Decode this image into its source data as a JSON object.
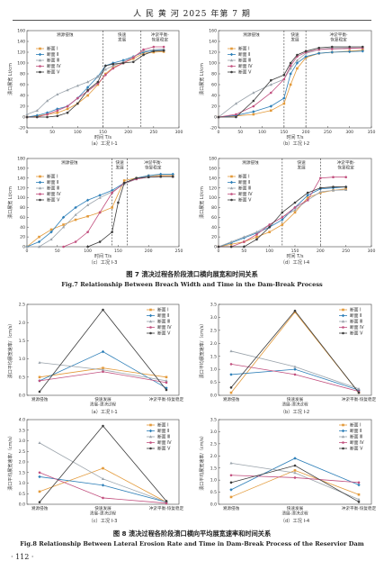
{
  "header": {
    "text": "人 民 黄 河    2025 年第 7 期"
  },
  "colors": {
    "s1": "#e39a3a",
    "s2": "#2d7fb8",
    "s3": "#9aa3ab",
    "s4": "#c2507f",
    "s5": "#3c3c3c"
  },
  "page_number": "· 112 ·",
  "fig7": {
    "caption_zh": "图 7    溃决过程各阶段溃口横向展宽和时间关系",
    "caption_en": "Fig.7    Relationship Between Breach Width and Time in the Dam-Break Process"
  },
  "fig8": {
    "caption_zh": "图 8    溃决过程各阶段溃口横向平均展宽速率和时间关系",
    "caption_en": "Fig.8    Relationship Between Lateral Erosion Rate and Time in Dam-Break Process of the Reservior Dam"
  },
  "chart_data": [
    {
      "type": "line",
      "subtitle": "（a）工况 Ⅰ-1",
      "xlabel": "时间 T/s",
      "ylabel": "溃口展宽 Lt/cm",
      "xlim": [
        0,
        300
      ],
      "ylim": [
        -20,
        160
      ],
      "xticks": [
        0,
        50,
        100,
        150,
        200,
        250,
        300
      ],
      "yticks": [
        -20,
        0,
        20,
        40,
        60,
        80,
        100,
        120,
        140,
        160
      ],
      "phase_lines": [
        150,
        225
      ],
      "phase_labels": [
        "溯源侵蚀",
        "快速\n发展",
        "冲淤平衡-\n恢复稳定"
      ],
      "series": [
        {
          "name": "断面 Ⅰ",
          "x": [
            0,
            20,
            40,
            60,
            80,
            100,
            120,
            140,
            155,
            170,
            190,
            210,
            230,
            250,
            270
          ],
          "y": [
            0,
            2,
            5,
            8,
            15,
            25,
            40,
            60,
            80,
            92,
            100,
            108,
            118,
            120,
            121
          ]
        },
        {
          "name": "断面 Ⅱ",
          "x": [
            0,
            20,
            40,
            60,
            80,
            100,
            120,
            140,
            155,
            170,
            190,
            210,
            230,
            250,
            270
          ],
          "y": [
            0,
            3,
            8,
            15,
            20,
            35,
            55,
            75,
            95,
            100,
            105,
            112,
            120,
            123,
            124
          ]
        },
        {
          "name": "断面 Ⅲ",
          "x": [
            0,
            20,
            40,
            60,
            80,
            100,
            120,
            140,
            155,
            170,
            190,
            210,
            230,
            250,
            270
          ],
          "y": [
            5,
            12,
            30,
            42,
            50,
            58,
            65,
            75,
            88,
            95,
            102,
            112,
            122,
            125,
            126
          ]
        },
        {
          "name": "断面 Ⅳ",
          "x": [
            0,
            20,
            40,
            60,
            80,
            100,
            120,
            140,
            155,
            170,
            190,
            210,
            230,
            250,
            270
          ],
          "y": [
            0,
            0,
            5,
            12,
            20,
            35,
            48,
            62,
            78,
            90,
            100,
            110,
            125,
            130,
            130
          ]
        },
        {
          "name": "断面 Ⅴ",
          "x": [
            0,
            20,
            40,
            60,
            80,
            100,
            120,
            140,
            155,
            170,
            190,
            210,
            230,
            250,
            270
          ],
          "y": [
            0,
            0,
            0,
            2,
            8,
            25,
            50,
            65,
            95,
            98,
            100,
            102,
            115,
            122,
            123
          ]
        }
      ]
    },
    {
      "type": "line",
      "subtitle": "（b）工况 Ⅰ-2",
      "xlabel": "时间 T/s",
      "ylabel": "溃口展宽 Lt/cm",
      "xlim": [
        0,
        350
      ],
      "ylim": [
        -20,
        160
      ],
      "xticks": [
        0,
        50,
        100,
        150,
        200,
        250,
        300,
        350
      ],
      "yticks": [
        -20,
        0,
        20,
        40,
        60,
        80,
        100,
        120,
        140,
        160
      ],
      "phase_lines": [
        150,
        200
      ],
      "phase_labels": [
        "溯源侵蚀",
        "快速\n发展",
        "冲淤平衡-\n恢复稳定"
      ],
      "series": [
        {
          "name": "断面 Ⅰ",
          "x": [
            0,
            40,
            80,
            120,
            150,
            165,
            180,
            200,
            230,
            260,
            300,
            330
          ],
          "y": [
            0,
            2,
            5,
            12,
            25,
            60,
            90,
            110,
            118,
            120,
            122,
            124
          ]
        },
        {
          "name": "断面 Ⅱ",
          "x": [
            0,
            40,
            80,
            120,
            150,
            165,
            180,
            200,
            230,
            260,
            300,
            330
          ],
          "y": [
            0,
            3,
            10,
            20,
            35,
            80,
            100,
            112,
            118,
            120,
            121,
            122
          ]
        },
        {
          "name": "断面 Ⅲ",
          "x": [
            0,
            40,
            80,
            120,
            150,
            165,
            180,
            200,
            230,
            260,
            300,
            330
          ],
          "y": [
            0,
            25,
            45,
            60,
            70,
            90,
            105,
            118,
            125,
            128,
            128,
            128
          ]
        },
        {
          "name": "断面 Ⅳ",
          "x": [
            0,
            40,
            80,
            120,
            150,
            165,
            180,
            200,
            230,
            260,
            300,
            330
          ],
          "y": [
            0,
            5,
            20,
            45,
            70,
            95,
            112,
            120,
            125,
            126,
            127,
            128
          ]
        },
        {
          "name": "断面 Ⅴ",
          "x": [
            0,
            40,
            80,
            120,
            150,
            165,
            180,
            200,
            230,
            260,
            300,
            330
          ],
          "y": [
            0,
            0,
            30,
            68,
            78,
            100,
            115,
            122,
            128,
            130,
            130,
            130
          ]
        }
      ]
    },
    {
      "type": "line",
      "subtitle": "（c）工况 Ⅰ-3",
      "xlabel": "时间 T/s",
      "ylabel": "溃口展宽 Lt/cm",
      "xlim": [
        0,
        250
      ],
      "ylim": [
        0,
        180
      ],
      "xticks": [
        0,
        50,
        100,
        150,
        200,
        250
      ],
      "yticks": [
        0,
        20,
        40,
        60,
        80,
        100,
        120,
        140,
        160,
        180
      ],
      "phase_lines": [
        140,
        165
      ],
      "phase_labels": [
        "溯源侵蚀",
        "快速\n发展",
        "冲淤平衡-\n恢复稳定"
      ],
      "series": [
        {
          "name": "断面 Ⅰ",
          "x": [
            0,
            20,
            40,
            60,
            80,
            100,
            120,
            140,
            160,
            180,
            200,
            220,
            240
          ],
          "y": [
            0,
            20,
            35,
            45,
            55,
            62,
            70,
            80,
            135,
            140,
            145,
            145,
            145
          ]
        },
        {
          "name": "断面 Ⅱ",
          "x": [
            0,
            20,
            40,
            60,
            80,
            100,
            120,
            140,
            160,
            180,
            200,
            220,
            240
          ],
          "y": [
            0,
            10,
            30,
            60,
            80,
            95,
            105,
            115,
            130,
            140,
            145,
            148,
            148
          ]
        },
        {
          "name": "断面 Ⅲ",
          "x": [
            0,
            20,
            40,
            60,
            80,
            100,
            120,
            140,
            160,
            180,
            200,
            220,
            240
          ],
          "y": [
            0,
            0,
            15,
            40,
            65,
            85,
            100,
            112,
            128,
            138,
            142,
            143,
            143
          ]
        },
        {
          "name": "断面 Ⅳ",
          "x": [
            60,
            80,
            100,
            120,
            140,
            160,
            180,
            200,
            220,
            240
          ],
          "y": [
            0,
            10,
            30,
            70,
            110,
            130,
            138,
            142,
            143,
            143
          ]
        },
        {
          "name": "断面 Ⅴ",
          "x": [
            100,
            120,
            140,
            150,
            160,
            180,
            200,
            220,
            240
          ],
          "y": [
            0,
            10,
            30,
            90,
            130,
            140,
            142,
            143,
            143
          ]
        }
      ]
    },
    {
      "type": "line",
      "subtitle": "（d）工况 Ⅰ-4",
      "xlabel": "时间 T/s",
      "ylabel": "溃口展宽 Lt/cm",
      "xlim": [
        0,
        300
      ],
      "ylim": [
        0,
        180
      ],
      "xticks": [
        0,
        50,
        100,
        150,
        200,
        250,
        300
      ],
      "yticks": [
        0,
        20,
        40,
        60,
        80,
        100,
        120,
        140,
        160,
        180
      ],
      "phase_lines": [
        125,
        200
      ],
      "phase_labels": [
        "溯源侵蚀",
        "快速\n发展",
        "冲淤平衡-\n恢复稳定"
      ],
      "series": [
        {
          "name": "断面 Ⅰ",
          "x": [
            0,
            25,
            50,
            75,
            100,
            125,
            150,
            175,
            200,
            225,
            250
          ],
          "y": [
            0,
            5,
            10,
            20,
            30,
            45,
            70,
            100,
            110,
            115,
            118
          ]
        },
        {
          "name": "断面 Ⅱ",
          "x": [
            0,
            25,
            50,
            75,
            100,
            125,
            150,
            175,
            200,
            225,
            250
          ],
          "y": [
            0,
            8,
            18,
            28,
            40,
            55,
            80,
            105,
            118,
            120,
            122
          ]
        },
        {
          "name": "断面 Ⅲ",
          "x": [
            0,
            25,
            50,
            75,
            100,
            125,
            150,
            175,
            200,
            225,
            250
          ],
          "y": [
            0,
            10,
            20,
            30,
            45,
            60,
            75,
            95,
            112,
            115,
            116
          ]
        },
        {
          "name": "断面 Ⅳ",
          "x": [
            0,
            25,
            50,
            75,
            100,
            125,
            150,
            175,
            200,
            225,
            250
          ],
          "y": [
            0,
            0,
            10,
            25,
            45,
            60,
            80,
            95,
            140,
            142,
            142
          ]
        },
        {
          "name": "断面 Ⅴ",
          "x": [
            0,
            25,
            50,
            75,
            100,
            125,
            150,
            175,
            200,
            225,
            250
          ],
          "y": [
            0,
            0,
            0,
            15,
            40,
            70,
            90,
            110,
            120,
            122,
            122
          ]
        }
      ]
    },
    {
      "type": "line",
      "subtitle": "（a）工况 Ⅰ-1",
      "ylabel": "溃口平均展宽速率/（cm/s）",
      "categories": [
        "溯源侵蚀",
        "快速发展\n溃展-漂决过程",
        "冲淤平衡-恢复稳定"
      ],
      "ylim": [
        0,
        2.5
      ],
      "yticks": [
        0,
        0.5,
        1.0,
        1.5,
        2.0,
        2.5
      ],
      "series": [
        {
          "name": "断面 Ⅰ",
          "values": [
            0.5,
            0.75,
            0.5
          ]
        },
        {
          "name": "断面 Ⅱ",
          "values": [
            0.4,
            1.2,
            0.2
          ]
        },
        {
          "name": "断面 Ⅲ",
          "values": [
            0.9,
            0.7,
            0.4
          ]
        },
        {
          "name": "断面 Ⅳ",
          "values": [
            0.4,
            0.65,
            0.35
          ]
        },
        {
          "name": "断面 Ⅴ",
          "values": [
            0.1,
            2.35,
            0.15
          ]
        }
      ]
    },
    {
      "type": "line",
      "subtitle": "（b）工况 Ⅰ-2",
      "ylabel": "溃口平均展宽速率/（cm/s）",
      "categories": [
        "溯源侵蚀",
        "快速发展\n溃展-漂决过程",
        "冲淤平衡-恢复稳定"
      ],
      "ylim": [
        0,
        3.5
      ],
      "yticks": [
        0,
        0.5,
        1.0,
        1.5,
        2.0,
        2.5,
        3.0,
        3.5
      ],
      "series": [
        {
          "name": "断面 Ⅰ",
          "values": [
            0.1,
            3.2,
            0.1
          ]
        },
        {
          "name": "断面 Ⅱ",
          "values": [
            0.8,
            1.0,
            0.2
          ]
        },
        {
          "name": "断面 Ⅲ",
          "values": [
            1.7,
            1.1,
            0.25
          ]
        },
        {
          "name": "断面 Ⅳ",
          "values": [
            1.2,
            0.8,
            0.15
          ]
        },
        {
          "name": "断面 Ⅴ",
          "values": [
            0.3,
            3.25,
            0.1
          ]
        }
      ]
    },
    {
      "type": "line",
      "subtitle": "（c）工况 Ⅰ-3",
      "ylabel": "溃口平均展宽速率/（cm/s）",
      "categories": [
        "溯源侵蚀",
        "快速发展\n溃展-漂决过程",
        "冲淤平衡-恢复稳定"
      ],
      "ylim": [
        0,
        4.0
      ],
      "yticks": [
        0,
        0.5,
        1.0,
        1.5,
        2.0,
        2.5,
        3.0,
        3.5,
        4.0
      ],
      "series": [
        {
          "name": "断面 Ⅰ",
          "values": [
            0.6,
            1.7,
            0.1
          ]
        },
        {
          "name": "断面 Ⅱ",
          "values": [
            1.3,
            0.9,
            0.1
          ]
        },
        {
          "name": "断面 Ⅲ",
          "values": [
            2.9,
            1.2,
            0.1
          ]
        },
        {
          "name": "断面 Ⅳ",
          "values": [
            1.5,
            0.3,
            0.05
          ]
        },
        {
          "name": "断面 Ⅴ",
          "values": [
            0.1,
            3.7,
            0.15
          ]
        }
      ]
    },
    {
      "type": "line",
      "subtitle": "（d）工况 Ⅰ-4",
      "ylabel": "溃口平均展宽速率/（cm/s）",
      "categories": [
        "溯源侵蚀",
        "快速发展\n溃展-漂决过程",
        "冲淤平衡-恢复稳定"
      ],
      "ylim": [
        0,
        3.5
      ],
      "yticks": [
        0,
        0.5,
        1.0,
        1.5,
        2.0,
        2.5,
        3.0,
        3.5
      ],
      "series": [
        {
          "name": "断面 Ⅰ",
          "values": [
            0.3,
            1.4,
            0.4
          ]
        },
        {
          "name": "断面 Ⅱ",
          "values": [
            0.6,
            1.9,
            0.8
          ]
        },
        {
          "name": "断面 Ⅲ",
          "values": [
            1.7,
            1.3,
            0.2
          ]
        },
        {
          "name": "断面 Ⅳ",
          "values": [
            1.2,
            1.1,
            0.9
          ]
        },
        {
          "name": "断面 Ⅴ",
          "values": [
            0.9,
            1.6,
            0.1
          ]
        }
      ]
    }
  ]
}
